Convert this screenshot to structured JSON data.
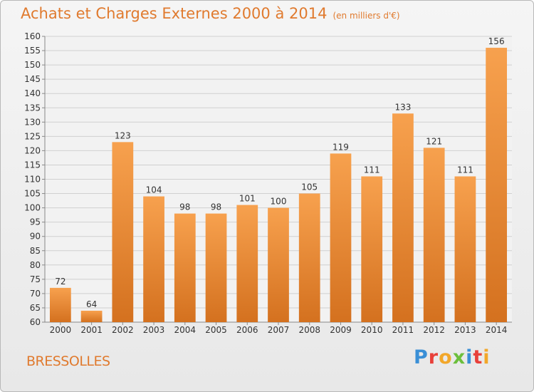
{
  "header": {
    "title": "Achats et Charges Externes 2000 à 2014",
    "subtitle": "(en milliers d'€)"
  },
  "footer": {
    "town": "BRESSOLLES",
    "logo_text": "Proxiti"
  },
  "colors": {
    "accent": "#e07a2e",
    "bar_top": "#f7a14e",
    "bar_bottom": "#d4711f"
  },
  "chart_data": {
    "type": "bar",
    "title": "Achats et Charges Externes 2000 à 2014",
    "subtitle": "(en milliers d'€)",
    "xlabel": "",
    "ylabel": "",
    "categories": [
      "2000",
      "2001",
      "2002",
      "2003",
      "2004",
      "2005",
      "2006",
      "2007",
      "2008",
      "2009",
      "2010",
      "2011",
      "2012",
      "2013",
      "2014"
    ],
    "values": [
      72,
      64,
      123,
      104,
      98,
      98,
      101,
      100,
      105,
      119,
      111,
      133,
      121,
      111,
      156
    ],
    "ylim": [
      60,
      160
    ],
    "ytick_step": 5,
    "grid": true,
    "legend": "none"
  }
}
